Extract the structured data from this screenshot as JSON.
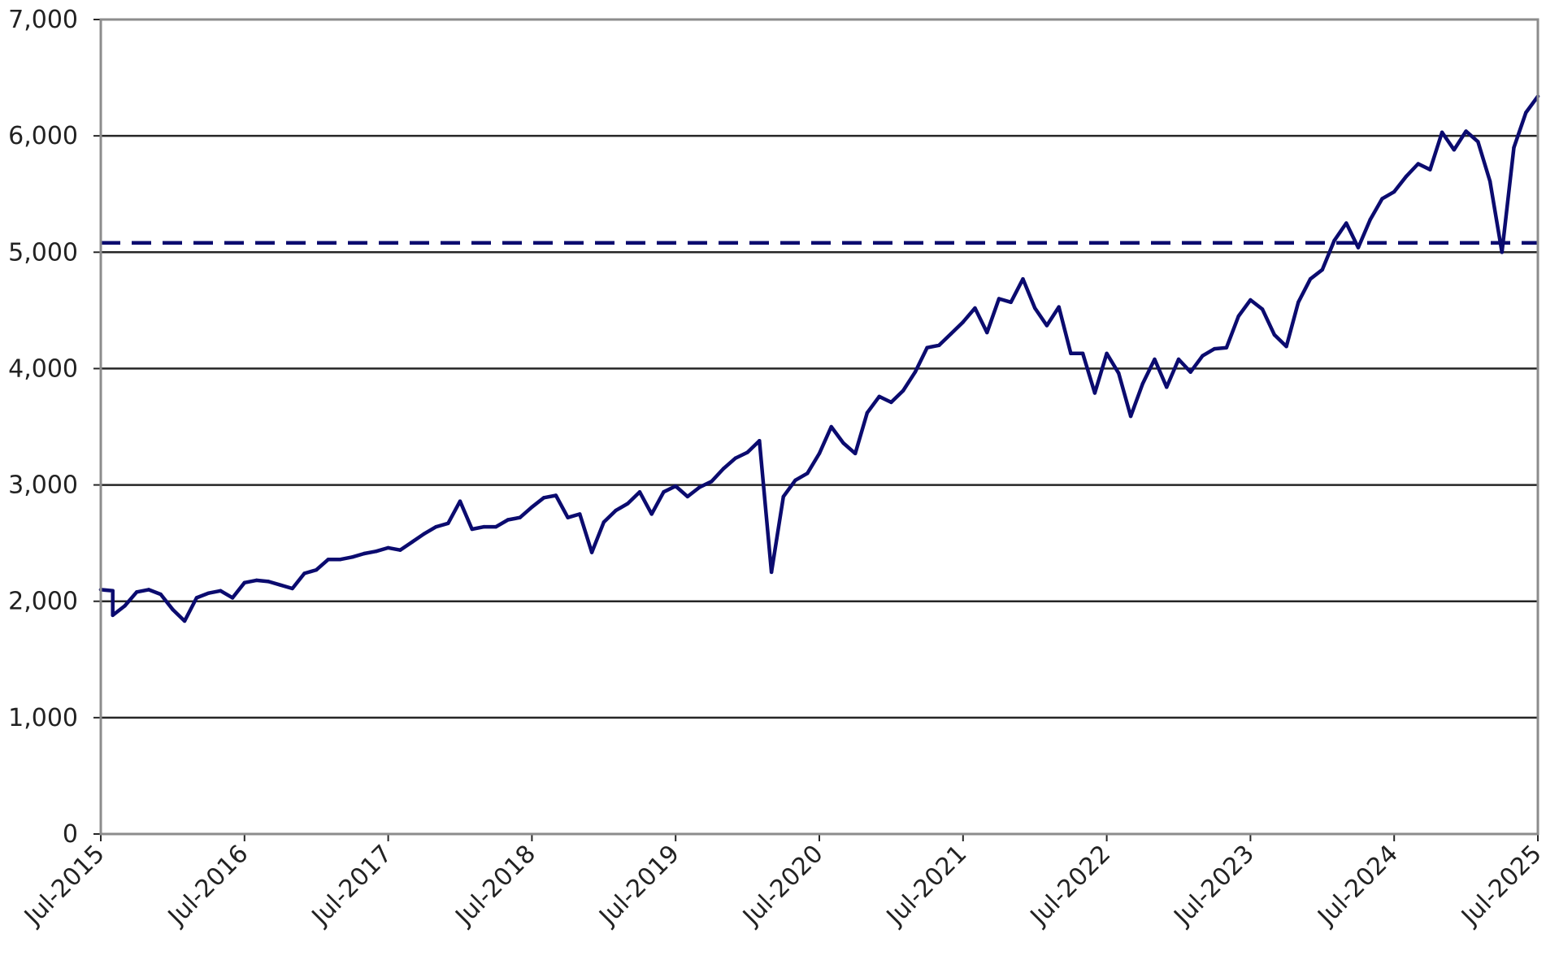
{
  "chart_data": {
    "type": "line",
    "title": "",
    "xlabel": "",
    "ylabel": "",
    "ylim": [
      0,
      7000
    ],
    "yticks": [
      0,
      1000,
      2000,
      3000,
      4000,
      5000,
      6000,
      7000
    ],
    "ytick_labels": [
      "0",
      "1,000",
      "2,000",
      "3,000",
      "4,000",
      "5,000",
      "6,000",
      "7,000"
    ],
    "xlim": [
      "2015-07",
      "2025-07"
    ],
    "xticks": [
      "2015-07",
      "2016-07",
      "2017-07",
      "2018-07",
      "2019-07",
      "2020-07",
      "2021-07",
      "2022-07",
      "2023-07",
      "2024-07",
      "2025-07"
    ],
    "xtick_labels": [
      "Jul-2015",
      "Jul-2016",
      "Jul-2017",
      "Jul-2018",
      "Jul-2019",
      "Jul-2020",
      "Jul-2021",
      "Jul-2022",
      "Jul-2023",
      "Jul-2024",
      "Jul-2025"
    ],
    "grid": "horizontal",
    "legend": "none",
    "series": [
      {
        "color": "#0b0b6f",
        "style": "solid",
        "points": [
          [
            "2015-07",
            2100
          ],
          [
            "2015-08",
            2090
          ],
          [
            "2015-08",
            1880
          ],
          [
            "2015-09",
            1960
          ],
          [
            "2015-10",
            2080
          ],
          [
            "2015-11",
            2100
          ],
          [
            "2015-12",
            2060
          ],
          [
            "2016-01",
            1930
          ],
          [
            "2016-02",
            1830
          ],
          [
            "2016-03",
            2030
          ],
          [
            "2016-04",
            2070
          ],
          [
            "2016-05",
            2090
          ],
          [
            "2016-06",
            2030
          ],
          [
            "2016-07",
            2160
          ],
          [
            "2016-08",
            2180
          ],
          [
            "2016-09",
            2170
          ],
          [
            "2016-10",
            2140
          ],
          [
            "2016-11",
            2110
          ],
          [
            "2016-12",
            2240
          ],
          [
            "2017-01",
            2270
          ],
          [
            "2017-02",
            2360
          ],
          [
            "2017-03",
            2360
          ],
          [
            "2017-04",
            2380
          ],
          [
            "2017-05",
            2410
          ],
          [
            "2017-06",
            2430
          ],
          [
            "2017-07",
            2460
          ],
          [
            "2017-08",
            2440
          ],
          [
            "2017-09",
            2510
          ],
          [
            "2017-10",
            2580
          ],
          [
            "2017-11",
            2640
          ],
          [
            "2017-12",
            2670
          ],
          [
            "2018-01",
            2860
          ],
          [
            "2018-02",
            2620
          ],
          [
            "2018-03",
            2640
          ],
          [
            "2018-04",
            2640
          ],
          [
            "2018-05",
            2700
          ],
          [
            "2018-06",
            2720
          ],
          [
            "2018-07",
            2810
          ],
          [
            "2018-08",
            2890
          ],
          [
            "2018-09",
            2910
          ],
          [
            "2018-10",
            2720
          ],
          [
            "2018-11",
            2750
          ],
          [
            "2018-12",
            2420
          ],
          [
            "2019-01",
            2680
          ],
          [
            "2019-02",
            2780
          ],
          [
            "2019-03",
            2840
          ],
          [
            "2019-04",
            2940
          ],
          [
            "2019-05",
            2750
          ],
          [
            "2019-06",
            2940
          ],
          [
            "2019-07",
            2990
          ],
          [
            "2019-08",
            2900
          ],
          [
            "2019-09",
            2980
          ],
          [
            "2019-10",
            3030
          ],
          [
            "2019-11",
            3140
          ],
          [
            "2019-12",
            3230
          ],
          [
            "2020-01",
            3280
          ],
          [
            "2020-02",
            3380
          ],
          [
            "2020-03",
            2250
          ],
          [
            "2020-04",
            2900
          ],
          [
            "2020-05",
            3040
          ],
          [
            "2020-06",
            3100
          ],
          [
            "2020-07",
            3270
          ],
          [
            "2020-08",
            3500
          ],
          [
            "2020-09",
            3360
          ],
          [
            "2020-10",
            3270
          ],
          [
            "2020-11",
            3620
          ],
          [
            "2020-12",
            3760
          ],
          [
            "2021-01",
            3710
          ],
          [
            "2021-02",
            3810
          ],
          [
            "2021-03",
            3970
          ],
          [
            "2021-04",
            4180
          ],
          [
            "2021-05",
            4200
          ],
          [
            "2021-06",
            4300
          ],
          [
            "2021-07",
            4400
          ],
          [
            "2021-08",
            4520
          ],
          [
            "2021-09",
            4310
          ],
          [
            "2021-10",
            4600
          ],
          [
            "2021-11",
            4570
          ],
          [
            "2021-12",
            4770
          ],
          [
            "2022-01",
            4520
          ],
          [
            "2022-02",
            4370
          ],
          [
            "2022-03",
            4530
          ],
          [
            "2022-04",
            4130
          ],
          [
            "2022-05",
            4130
          ],
          [
            "2022-06",
            3790
          ],
          [
            "2022-07",
            4130
          ],
          [
            "2022-08",
            3960
          ],
          [
            "2022-09",
            3590
          ],
          [
            "2022-10",
            3870
          ],
          [
            "2022-11",
            4080
          ],
          [
            "2022-12",
            3840
          ],
          [
            "2023-01",
            4080
          ],
          [
            "2023-02",
            3970
          ],
          [
            "2023-03",
            4110
          ],
          [
            "2023-04",
            4170
          ],
          [
            "2023-05",
            4180
          ],
          [
            "2023-06",
            4450
          ],
          [
            "2023-07",
            4590
          ],
          [
            "2023-08",
            4510
          ],
          [
            "2023-09",
            4290
          ],
          [
            "2023-10",
            4190
          ],
          [
            "2023-11",
            4570
          ],
          [
            "2023-12",
            4770
          ],
          [
            "2024-01",
            4850
          ],
          [
            "2024-02",
            5100
          ],
          [
            "2024-03",
            5250
          ],
          [
            "2024-04",
            5040
          ],
          [
            "2024-05",
            5280
          ],
          [
            "2024-06",
            5460
          ],
          [
            "2024-07",
            5520
          ],
          [
            "2024-08",
            5650
          ],
          [
            "2024-09",
            5760
          ],
          [
            "2024-10",
            5710
          ],
          [
            "2024-11",
            6030
          ],
          [
            "2024-12",
            5880
          ],
          [
            "2025-01",
            6040
          ],
          [
            "2025-02",
            5950
          ],
          [
            "2025-03",
            5610
          ],
          [
            "2025-04",
            5000
          ],
          [
            "2025-05",
            5900
          ],
          [
            "2025-06",
            6200
          ],
          [
            "2025-07",
            6340
          ]
        ]
      },
      {
        "color": "#0b0b6f",
        "style": "dashed",
        "points": [
          [
            "2015-07",
            5080
          ],
          [
            "2025-07",
            5080
          ]
        ]
      }
    ]
  }
}
